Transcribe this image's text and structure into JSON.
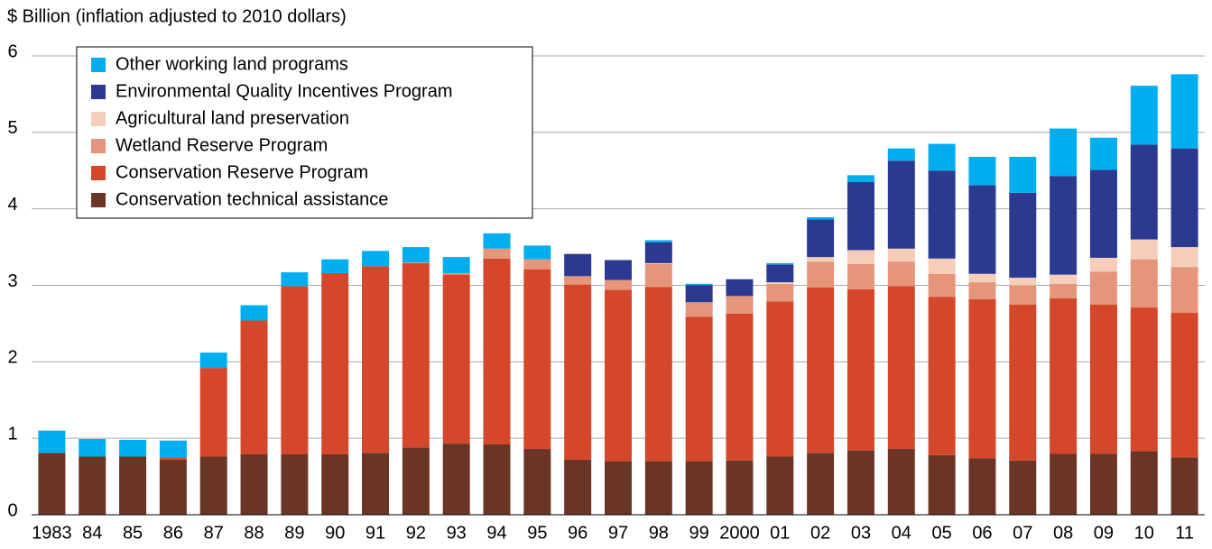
{
  "chart_data": {
    "type": "stacked_bar",
    "y_axis_label": "$ Billion (inflation adjusted to 2010 dollars)",
    "categories": [
      "1983",
      "84",
      "85",
      "86",
      "87",
      "88",
      "89",
      "90",
      "91",
      "92",
      "93",
      "94",
      "95",
      "96",
      "97",
      "98",
      "99",
      "2000",
      "01",
      "02",
      "03",
      "04",
      "05",
      "06",
      "07",
      "08",
      "09",
      "10",
      "11"
    ],
    "series": [
      {
        "name": "Conservation technical assistance",
        "color": "#6b3526",
        "values": [
          0.81,
          0.76,
          0.76,
          0.72,
          0.76,
          0.79,
          0.79,
          0.79,
          0.81,
          0.88,
          0.93,
          0.92,
          0.86,
          0.72,
          0.7,
          0.7,
          0.7,
          0.71,
          0.76,
          0.81,
          0.84,
          0.86,
          0.78,
          0.74,
          0.71,
          0.8,
          0.8,
          0.83,
          0.75
        ]
      },
      {
        "name": "Conservation Reserve Program",
        "color": "#d5472a",
        "values": [
          0,
          0,
          0,
          0.03,
          1.16,
          1.75,
          2.2,
          2.37,
          2.44,
          2.41,
          2.21,
          2.43,
          2.35,
          2.29,
          2.24,
          2.28,
          1.89,
          1.92,
          2.03,
          2.16,
          2.11,
          2.13,
          2.07,
          2.08,
          2.04,
          2.03,
          1.95,
          1.88,
          1.89
        ]
      },
      {
        "name": "Wetland Reserve Program",
        "color": "#e5957a",
        "values": [
          0,
          0,
          0,
          0,
          0,
          0,
          0,
          0,
          0,
          0.01,
          0.02,
          0.13,
          0.13,
          0.11,
          0.13,
          0.3,
          0.19,
          0.23,
          0.23,
          0.34,
          0.33,
          0.32,
          0.3,
          0.22,
          0.25,
          0.19,
          0.43,
          0.63,
          0.6
        ]
      },
      {
        "name": "Agricultural land preservation",
        "color": "#f5cdb8",
        "values": [
          0,
          0,
          0,
          0,
          0,
          0,
          0,
          0,
          0,
          0,
          0,
          0,
          0,
          0,
          0,
          0.01,
          0,
          0,
          0.02,
          0.06,
          0.18,
          0.17,
          0.2,
          0.11,
          0.1,
          0.12,
          0.18,
          0.26,
          0.26
        ]
      },
      {
        "name": "Environmental Quality Incentives Program",
        "color": "#2b3990",
        "values": [
          0,
          0,
          0,
          0,
          0,
          0,
          0,
          0,
          0,
          0,
          0,
          0,
          0,
          0.29,
          0.26,
          0.27,
          0.22,
          0.22,
          0.23,
          0.49,
          0.89,
          1.15,
          1.15,
          1.16,
          1.11,
          1.29,
          1.15,
          1.24,
          1.29
        ]
      },
      {
        "name": "Other working land programs",
        "color": "#00aeef",
        "values": [
          0.29,
          0.23,
          0.22,
          0.22,
          0.2,
          0.2,
          0.18,
          0.18,
          0.2,
          0.2,
          0.21,
          0.2,
          0.18,
          0,
          0,
          0.03,
          0.02,
          0,
          0.02,
          0.03,
          0.09,
          0.16,
          0.35,
          0.37,
          0.47,
          0.62,
          0.42,
          0.77,
          0.97
        ]
      }
    ],
    "ylim": [
      0,
      6
    ],
    "yticks": [
      0,
      1,
      2,
      3,
      4,
      5,
      6
    ],
    "grid": true,
    "legend": "upper left"
  }
}
